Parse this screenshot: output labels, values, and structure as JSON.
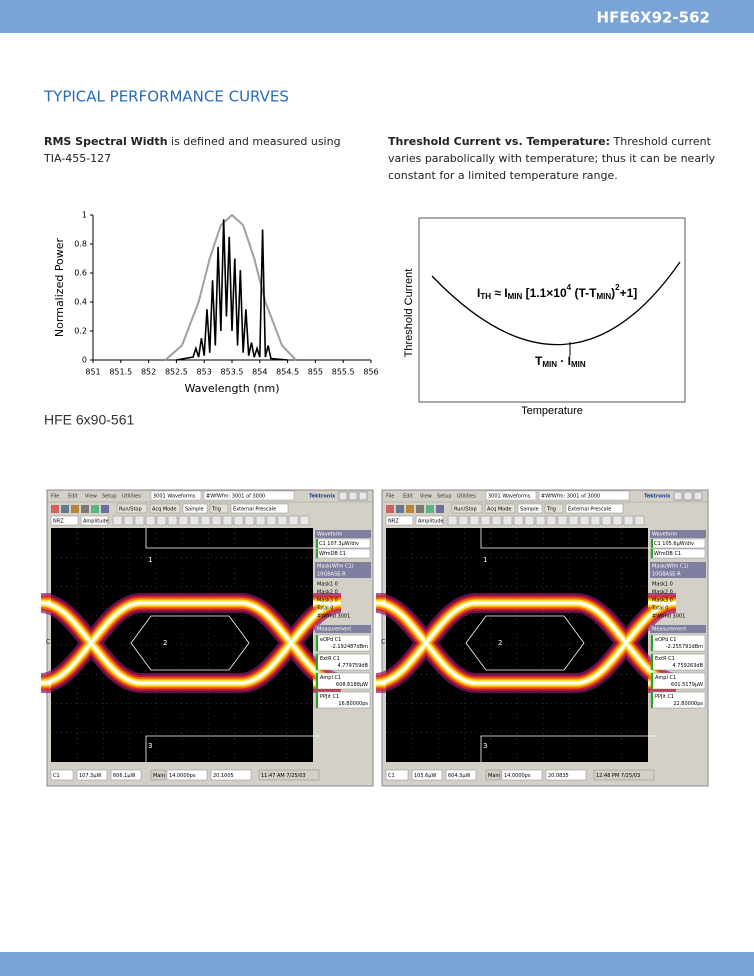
{
  "header": {
    "title": "HFE6X92-562"
  },
  "section": {
    "title": "TYPICAL PERFORMANCE CURVES"
  },
  "left_text": {
    "bold": "RMS Spectral Width",
    "rest": " is defined and measured using",
    "line2": "TIA-455-127"
  },
  "right_text": {
    "bold": "Threshold Current vs. Temperature:",
    "rest": "  Threshold current",
    "lines": [
      "varies parabolically with temperature; thus it can be nearly",
      "constant for a limited temperature range."
    ]
  },
  "chart_data": {
    "type": "line",
    "xlabel": "Wavelength (nm)",
    "ylabel": "Normalized Power",
    "xlim": [
      851,
      856
    ],
    "ylim": [
      0,
      1
    ],
    "xticks": [
      851,
      851.5,
      852,
      852.5,
      853,
      853.5,
      854,
      854.5,
      855,
      855.5,
      856
    ],
    "yticks": [
      0,
      0.2,
      0.4,
      0.6,
      0.8,
      1
    ],
    "series": [
      {
        "color": "#000000",
        "x": [
          852.5,
          852.8,
          852.85,
          852.9,
          852.95,
          853.0,
          853.05,
          853.1,
          853.15,
          853.2,
          853.25,
          853.3,
          853.35,
          853.4,
          853.45,
          853.5,
          853.55,
          853.6,
          853.65,
          853.7,
          853.75,
          853.8,
          853.85,
          853.9,
          853.95,
          854.0,
          854.05,
          854.1,
          854.15,
          854.2,
          854.5
        ],
        "values": [
          0,
          0.02,
          0.08,
          0.02,
          0.15,
          0.03,
          0.35,
          0.05,
          0.55,
          0.1,
          0.78,
          0.2,
          0.97,
          0.3,
          0.85,
          0.2,
          0.7,
          0.1,
          0.62,
          0.05,
          0.35,
          0.03,
          0.12,
          0.02,
          0.08,
          0.02,
          0.9,
          0.02,
          0.1,
          0.01,
          0
        ]
      },
      {
        "color": "#a0a0a0",
        "x": [
          852.3,
          852.6,
          852.9,
          853.1,
          853.3,
          853.5,
          853.7,
          853.9,
          854.1,
          854.4,
          854.65
        ],
        "values": [
          0,
          0.1,
          0.4,
          0.7,
          0.93,
          1,
          0.93,
          0.7,
          0.4,
          0.1,
          0
        ]
      }
    ]
  },
  "threshold": {
    "ylabel": "Threshold Current",
    "xlabel": "Temperature",
    "equation": [
      "I",
      "TH",
      " ≈ I",
      "MIN",
      " [1.1×10",
      "4",
      " (T-T",
      "MIN",
      ")",
      "2",
      "+1]"
    ],
    "min_label": [
      "T",
      "MIN",
      " · I",
      "MIN"
    ]
  },
  "product": {
    "title": "HFE 6x90-561"
  },
  "scopes": [
    {
      "menu": [
        "File",
        "Edit",
        "View",
        "Setup",
        "Utilities",
        "Help"
      ],
      "title": "3001 Waveforms",
      "wfm": "#WfWfm: 3001 of 3000",
      "brand": "Tektronix",
      "toolbar": [
        "Run/Stop",
        "Acq Mode",
        "Sample",
        "Trig",
        "External Prescale"
      ],
      "toolbar2": [
        "NRZ",
        "Amplitude"
      ],
      "channel_tag": "C1",
      "markers": [
        "1",
        "2",
        "3"
      ],
      "panel": {
        "waveform_header": "Waveform",
        "channel": "C1 107.3μW/div",
        "wfmdb": "WfmDB C1",
        "mask_header": "Mask(Wfm C1)",
        "mask_std": "10GBASE-R",
        "mask_rows": [
          "Mask1  0",
          "Mask2  0",
          "Mask3  0",
          "Total  0",
          "#Wfmd  3001"
        ],
        "meas_header": "Measurement",
        "measurements": [
          {
            "name": "eOPd  C1",
            "value": "-2.192487dBm"
          },
          {
            "name": "ExtR  C1",
            "value": "4.779759dB"
          },
          {
            "name": "Ampl  C1",
            "value": "608.6188μW"
          },
          {
            "name": "PPJit  C1",
            "value": "16.80000ps"
          }
        ]
      },
      "bottom": [
        "C1",
        "107.3μW",
        "606.1μW",
        "Main",
        "14.0000ps",
        "20.1005",
        "11:47 AM 7/25/03"
      ]
    },
    {
      "menu": [
        "File",
        "Edit",
        "View",
        "Setup",
        "Utilities",
        "Help"
      ],
      "title": "3001 Waveforms",
      "wfm": "#WfWfm: 3001 of 3000",
      "brand": "Tektronix",
      "toolbar": [
        "Run/Stop",
        "Acq Mode",
        "Sample",
        "Trig",
        "External Prescale"
      ],
      "toolbar2": [
        "NRZ",
        "Amplitude"
      ],
      "channel_tag": "C1",
      "markers": [
        "1",
        "2",
        "3"
      ],
      "panel": {
        "waveform_header": "Waveform",
        "channel": "C1 105.6μW/div",
        "wfmdb": "WfmDB C1",
        "mask_header": "Mask(Wfm C1)",
        "mask_std": "10GBASE-R",
        "mask_rows": [
          "Mask1  0",
          "Mask2  0",
          "Mask3  0",
          "Total  0",
          "#Wfmd  3001"
        ],
        "meas_header": "Measurement",
        "measurements": [
          {
            "name": "eOPd  C1",
            "value": "-2.255791dBm"
          },
          {
            "name": "ExtR  C1",
            "value": "4.759263dB"
          },
          {
            "name": "Ampl  C1",
            "value": "601.5179μW"
          },
          {
            "name": "PPJit  C1",
            "value": "22.80000ps"
          }
        ]
      },
      "bottom": [
        "C1",
        "105.6μW",
        "604.3μW",
        "Main",
        "14.0000ps",
        "20.0835",
        "12:48 PM 7/25/03"
      ]
    }
  ]
}
